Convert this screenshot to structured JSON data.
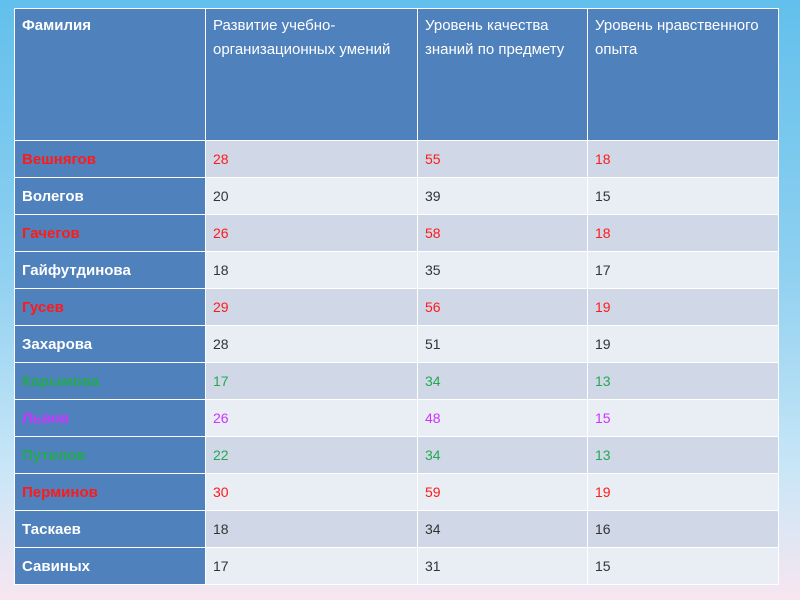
{
  "chart_data": {
    "type": "table",
    "columns": [
      "Фамилия",
      "Развитие учебно-организационных умений",
      "Уровень качества знаний по предмету",
      "Уровень нравственного опыта"
    ],
    "rows": [
      {
        "name": "Вешнягов",
        "values": [
          "28",
          "55",
          "18"
        ],
        "color": "red"
      },
      {
        "name": "Волегов",
        "values": [
          "20",
          "39",
          "15"
        ],
        "color": "default"
      },
      {
        "name": "Гачегов",
        "values": [
          "26",
          "58",
          "18"
        ],
        "color": "red"
      },
      {
        "name": "Гайфутдинова",
        "values": [
          "18",
          "35",
          "17"
        ],
        "color": "default"
      },
      {
        "name": "Гусев",
        "values": [
          "29",
          "56",
          "19"
        ],
        "color": "red"
      },
      {
        "name": "Захарова",
        "values": [
          "28",
          "51",
          "19"
        ],
        "color": "default"
      },
      {
        "name": "Карымова",
        "values": [
          "17",
          "34",
          "13"
        ],
        "color": "green"
      },
      {
        "name": "Львов",
        "values": [
          "26",
          "48",
          "15"
        ],
        "color": "purple"
      },
      {
        "name": "Путилов",
        "values": [
          "22",
          "34",
          "13"
        ],
        "color": "green"
      },
      {
        "name": "Перминов",
        "values": [
          "30",
          "59",
          "19"
        ],
        "color": "red"
      },
      {
        "name": "Таскаев",
        "values": [
          "18",
          "34",
          "16"
        ],
        "color": "default"
      },
      {
        "name": "Савиных",
        "values": [
          "17",
          "31",
          "15"
        ],
        "color": "default"
      }
    ]
  },
  "colors": {
    "header_bg": "#4f81bd",
    "row_odd_bg": "#d0d8e8",
    "row_even_bg": "#e9edf4",
    "red": "#ff1a1a",
    "green": "#23a94f",
    "purple": "#cc33ff",
    "default_name": "#ffffff",
    "default_value": "#333333"
  }
}
